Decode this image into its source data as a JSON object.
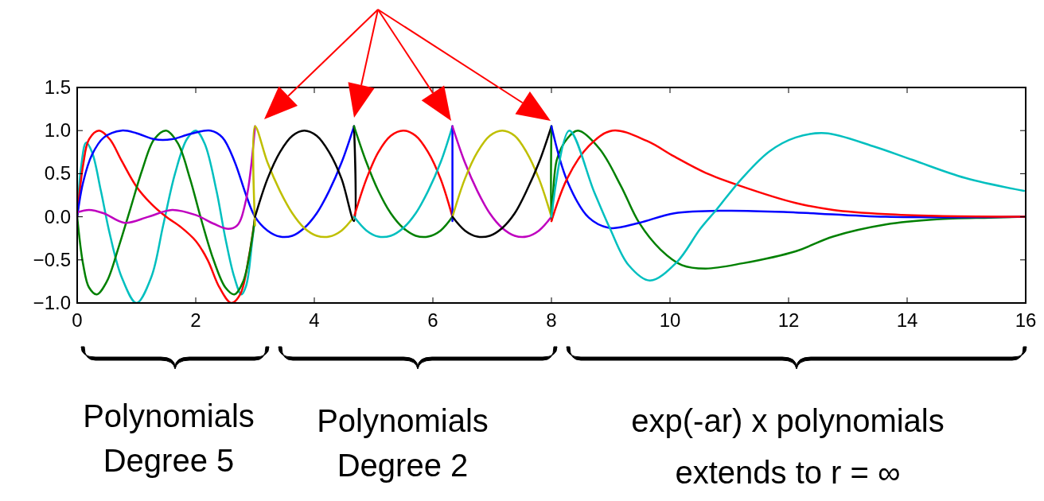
{
  "chart_data": {
    "type": "line",
    "xlim": [
      0,
      16
    ],
    "ylim": [
      -1,
      1.5
    ],
    "xticks": [
      0,
      2,
      4,
      6,
      8,
      10,
      12,
      14,
      16
    ],
    "yticks": [
      {
        "value": 1.5,
        "label": "1.5"
      },
      {
        "value": 1,
        "label": "1.0"
      },
      {
        "value": 0.5,
        "label": "0.5"
      },
      {
        "value": 0,
        "label": "0.0"
      },
      {
        "value": -0.5,
        "label": "−0.5"
      },
      {
        "value": -1,
        "label": "−1.0"
      }
    ],
    "grid": false,
    "marker": "none",
    "line_style": "solid",
    "annotations": [
      "Polynomials\nDegree 5",
      "Polynomials\nDegree 2",
      "exp(-ar) x polynomials\nextends to r = ∞"
    ],
    "series": [
      {
        "color": "#00bfbf",
        "x": [
          0,
          0.07,
          0.15,
          0.25,
          0.4,
          0.55,
          0.75,
          1.0,
          1.25,
          1.45,
          1.65,
          1.85,
          2.0,
          2.15,
          2.35,
          2.5,
          2.65,
          2.77,
          2.85,
          2.95,
          3.0
        ],
        "values": [
          0,
          0.6,
          0.86,
          0.75,
          0.3,
          -0.2,
          -0.7,
          -1.0,
          -0.7,
          -0.1,
          0.5,
          0.9,
          1.0,
          0.85,
          0.3,
          -0.25,
          -0.7,
          -0.9,
          -0.8,
          -0.3,
          0
        ]
      },
      {
        "color": "#ff0000",
        "x": [
          0,
          0.1,
          0.2,
          0.37,
          0.55,
          0.75,
          1.0,
          1.25,
          1.5,
          1.75,
          2.0,
          2.2,
          2.4,
          2.6,
          2.75,
          2.9,
          3.0
        ],
        "values": [
          0,
          0.6,
          0.9,
          1.0,
          0.9,
          0.65,
          0.35,
          0.15,
          0,
          -0.12,
          -0.28,
          -0.5,
          -0.82,
          -1.0,
          -0.9,
          -0.45,
          0
        ]
      },
      {
        "color": "#008000",
        "x": [
          0,
          0.1,
          0.2,
          0.33,
          0.5,
          0.7,
          0.9,
          1.1,
          1.3,
          1.5,
          1.7,
          1.9,
          2.1,
          2.3,
          2.5,
          2.65,
          2.8,
          2.95,
          3.0
        ],
        "values": [
          0,
          -0.55,
          -0.82,
          -0.9,
          -0.75,
          -0.35,
          0.1,
          0.55,
          0.9,
          1.0,
          0.85,
          0.45,
          -0.05,
          -0.5,
          -0.82,
          -0.9,
          -0.75,
          -0.25,
          0
        ]
      },
      {
        "color": "#0000ff",
        "x": [
          0,
          0.1,
          0.25,
          0.45,
          0.75,
          1.0,
          1.3,
          1.6,
          1.9,
          2.25,
          2.45,
          2.65,
          2.85,
          3.0,
          3.21,
          3.42,
          3.63,
          3.83,
          4.04,
          4.25,
          4.46,
          4.67
        ],
        "values": [
          0,
          0.4,
          0.72,
          0.92,
          1.0,
          0.97,
          0.9,
          0.9,
          0.96,
          1.0,
          0.92,
          0.65,
          0.25,
          0,
          -0.16,
          -0.23,
          -0.22,
          -0.13,
          0.04,
          0.3,
          0.63,
          1.05
        ]
      },
      {
        "color": "#bf00bf",
        "x": [
          0,
          0.2,
          0.45,
          0.8,
          1.2,
          1.6,
          2.0,
          2.3,
          2.55,
          2.7,
          2.85,
          3.0
        ],
        "values": [
          0.05,
          0.08,
          0.04,
          -0.07,
          0,
          0.08,
          0.02,
          -0.08,
          -0.14,
          -0.1,
          0.2,
          1.05
        ]
      },
      {
        "color": "#bfbf00",
        "x": [
          3,
          3,
          3.21,
          3.42,
          3.63,
          3.83,
          4.04,
          4.25,
          4.46,
          4.67
        ],
        "values": [
          -0.1,
          1.05,
          0.63,
          0.3,
          0.04,
          -0.13,
          -0.22,
          -0.23,
          -0.16,
          0
        ]
      },
      {
        "color": "#000000",
        "x": [
          3,
          3.21,
          3.42,
          3.63,
          3.83,
          4.04,
          4.25,
          4.46,
          4.67,
          4.67
        ],
        "values": [
          0,
          0.44,
          0.75,
          0.94,
          1.0,
          0.94,
          0.75,
          0.44,
          -0.05,
          1.05
        ]
      },
      {
        "color": "#008000",
        "x": [
          4.67,
          4.88,
          5.08,
          5.29,
          5.5,
          5.71,
          5.92,
          6.13,
          6.33
        ],
        "values": [
          1.05,
          0.63,
          0.3,
          0.04,
          -0.13,
          -0.22,
          -0.23,
          -0.16,
          0
        ]
      },
      {
        "color": "#ff0000",
        "x": [
          4.67,
          4.88,
          5.08,
          5.29,
          5.5,
          5.71,
          5.92,
          6.13,
          6.33
        ],
        "values": [
          0,
          0.44,
          0.75,
          0.94,
          1.0,
          0.94,
          0.75,
          0.44,
          0
        ]
      },
      {
        "color": "#00bfbf",
        "x": [
          4.67,
          4.88,
          5.08,
          5.29,
          5.5,
          5.71,
          5.92,
          6.13,
          6.33
        ],
        "values": [
          0,
          -0.16,
          -0.23,
          -0.22,
          -0.13,
          0.04,
          0.3,
          0.63,
          1.05
        ]
      },
      {
        "color": "#0000ff",
        "x": [
          6.33,
          6.33
        ],
        "values": [
          -0.05,
          1.05
        ]
      },
      {
        "color": "#bf00bf",
        "x": [
          6.33,
          6.54,
          6.75,
          6.96,
          7.17,
          7.38,
          7.58,
          7.79,
          8
        ],
        "values": [
          1.05,
          0.63,
          0.3,
          0.04,
          -0.13,
          -0.22,
          -0.23,
          -0.16,
          0
        ]
      },
      {
        "color": "#bfbf00",
        "x": [
          6.33,
          6.54,
          6.75,
          6.96,
          7.17,
          7.38,
          7.58,
          7.79,
          8
        ],
        "values": [
          0,
          0.44,
          0.75,
          0.94,
          1.0,
          0.94,
          0.75,
          0.44,
          0
        ]
      },
      {
        "color": "#000000",
        "x": [
          6.33,
          6.54,
          6.75,
          6.96,
          7.17,
          7.38,
          7.58,
          7.79,
          8
        ],
        "values": [
          0,
          -0.16,
          -0.23,
          -0.22,
          -0.13,
          0.04,
          0.3,
          0.63,
          1.05
        ]
      },
      {
        "color": "#008000",
        "x": [
          8,
          8,
          8.09,
          8.27,
          8.45,
          8.81,
          9.17,
          9.48,
          9.84,
          10.2,
          10.6,
          11.22,
          12.12,
          12.75,
          13.64,
          14.5,
          15.4,
          16
        ],
        "values": [
          1.05,
          -0.05,
          0.66,
          0.91,
          1.0,
          0.79,
          0.36,
          -0.07,
          -0.38,
          -0.56,
          -0.6,
          -0.54,
          -0.4,
          -0.23,
          -0.09,
          -0.03,
          -0.01,
          0
        ]
      },
      {
        "color": "#0000ff",
        "x": [
          8,
          8.27,
          8.63,
          8.99,
          9.48,
          10.07,
          10.95,
          12.12,
          13.64,
          16
        ],
        "values": [
          1.05,
          0.41,
          -0.01,
          -0.13,
          -0.07,
          0.04,
          0.07,
          0.05,
          0,
          0
        ]
      },
      {
        "color": "#ff0000",
        "x": [
          8,
          8.27,
          8.63,
          9.03,
          9.61,
          10.07,
          10.6,
          11.18,
          12.12,
          12.75,
          13.64,
          14.5,
          16
        ],
        "values": [
          -0.05,
          0.45,
          0.82,
          1.0,
          0.88,
          0.7,
          0.51,
          0.36,
          0.16,
          0.08,
          0.03,
          0.01,
          0
        ]
      },
      {
        "color": "#00bfbf",
        "x": [
          8,
          8.3,
          8.72,
          8.99,
          9.3,
          9.66,
          10.11,
          10.51,
          10.78,
          11.22,
          11.68,
          12.12,
          12.62,
          13.42,
          14.09,
          14.98,
          15.97
        ],
        "values": [
          0,
          1.0,
          0.29,
          -0.14,
          -0.56,
          -0.74,
          -0.53,
          -0.14,
          0.08,
          0.45,
          0.76,
          0.92,
          0.97,
          0.82,
          0.66,
          0.45,
          0.3
        ]
      }
    ]
  }
}
